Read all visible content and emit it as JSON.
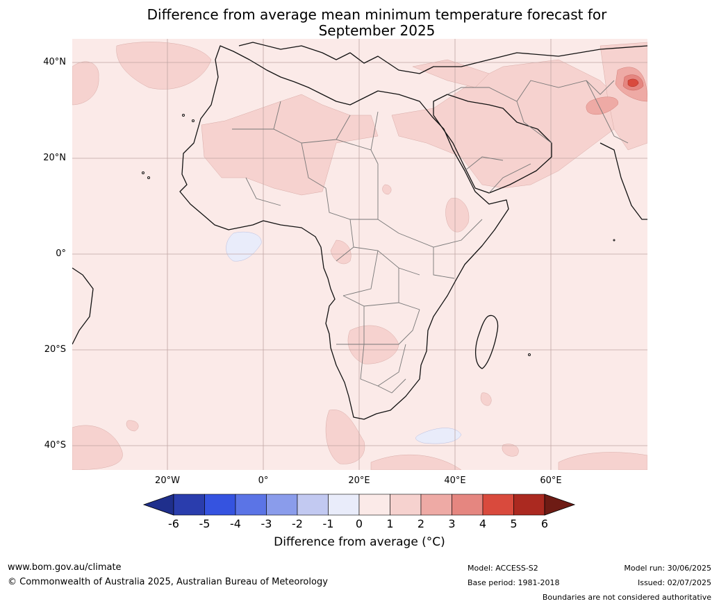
{
  "title": {
    "line1": "Difference from average mean minimum temperature forecast for",
    "line2": "September 2025"
  },
  "map": {
    "y_axis_labels": [
      "40°N",
      "20°N",
      "0°",
      "20°S",
      "40°S"
    ],
    "x_axis_labels": [
      "20°W",
      "0°",
      "20°E",
      "40°E",
      "60°E"
    ],
    "background_color": "#fbeae8"
  },
  "colorbar": {
    "ticks": [
      "-6",
      "-5",
      "-4",
      "-3",
      "-2",
      "-1",
      "0",
      "1",
      "2",
      "3",
      "4",
      "5",
      "6"
    ],
    "label": "Difference from average (°C)",
    "colors": [
      "#1f2f8c",
      "#2a3dad",
      "#3553e0",
      "#5b74e6",
      "#8a9ceb",
      "#c2c9f1",
      "#e9ecfa",
      "#fbeae8",
      "#f6d2cf",
      "#eeaaa5",
      "#e58680",
      "#d94a3d",
      "#ab2920",
      "#6e1b14"
    ]
  },
  "footer": {
    "website": "www.bom.gov.au/climate",
    "copyright": "© Commonwealth of Australia 2025, Australian Bureau of Meteorology",
    "model": "Model: ACCESS-S2",
    "base_period": "Base period: 1981-2018",
    "model_run": "Model run: 30/06/2025",
    "issued": "Issued: 02/07/2025",
    "disclaimer": "Boundaries are not considered authoritative"
  }
}
